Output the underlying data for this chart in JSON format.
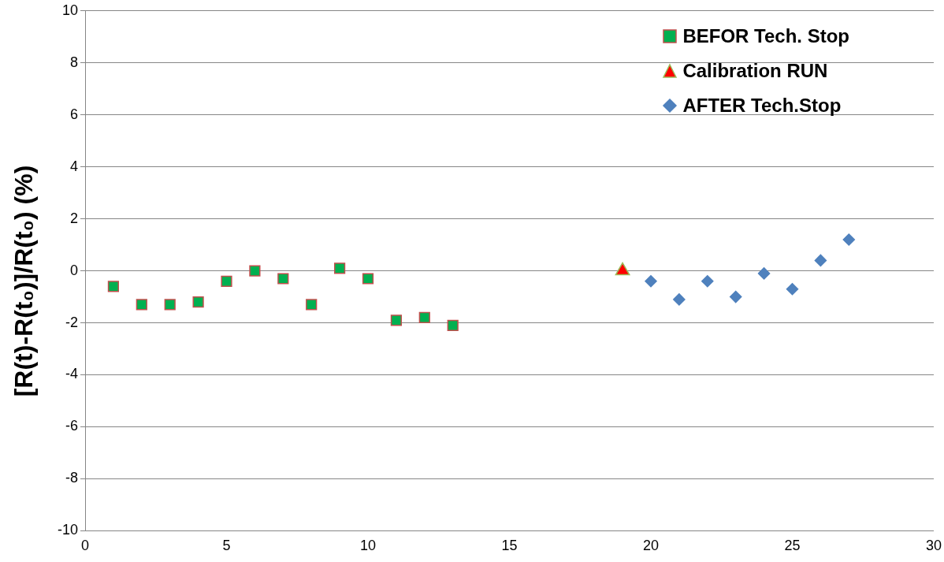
{
  "chart_data": {
    "type": "scatter",
    "ylabel": "[R(t)-R(t₀)]/R(t₀) (%)",
    "xlim": [
      0,
      30
    ],
    "xticks": [
      0,
      5,
      10,
      15,
      20,
      25,
      30
    ],
    "ylim": [
      -10,
      10
    ],
    "yticks": [
      -10,
      -8,
      -6,
      -4,
      -2,
      0,
      2,
      4,
      6,
      8,
      10
    ],
    "grid": "y",
    "legend": "top right",
    "series": [
      {
        "name": "BEFOR Tech. Stop",
        "color": "#00b050",
        "marker": "square",
        "x": [
          1,
          2,
          3,
          4,
          5,
          6,
          7,
          8,
          9,
          10,
          11,
          12,
          13
        ],
        "values": [
          -0.6,
          -1.3,
          -1.3,
          -1.2,
          -0.4,
          0.0,
          -0.3,
          -1.3,
          0.1,
          -0.3,
          -1.9,
          -1.8,
          -2.1
        ]
      },
      {
        "name": "Calibration RUN",
        "color": "#ff0000",
        "marker": "triangle",
        "x": [
          19
        ],
        "values": [
          0.0
        ]
      },
      {
        "name": "AFTER Tech.Stop",
        "color": "#4f81bd",
        "marker": "diamond",
        "x": [
          20,
          21,
          22,
          23,
          24,
          25,
          26,
          27
        ],
        "values": [
          -0.4,
          -1.1,
          -0.4,
          -1.0,
          -0.1,
          -0.7,
          0.4,
          1.2
        ]
      }
    ]
  }
}
